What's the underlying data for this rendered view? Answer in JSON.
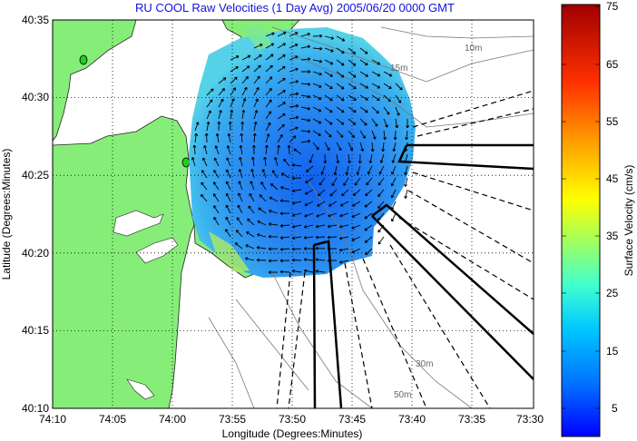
{
  "title": "RU COOL Raw Velocities (1 Day Avg) 2005/06/20 0000 GMT",
  "axes": {
    "xlabel": "Longitude (Degrees:Minutes)",
    "ylabel": "Latitude (Degrees:Minutes)",
    "xticks": [
      "74:10",
      "74:05",
      "74:00",
      "73:55",
      "73:50",
      "73:45",
      "73:40",
      "73:35",
      "73:30"
    ],
    "yticks": [
      "40:35",
      "40:30",
      "40:25",
      "40:20",
      "40:15",
      "40:10"
    ]
  },
  "colorbar": {
    "label": "Surface Velocity (cm/s)",
    "ticks": [
      "75",
      "65",
      "55",
      "45",
      "35",
      "25",
      "15",
      "5"
    ],
    "range": [
      0,
      75
    ],
    "colors": [
      "#0000ff",
      "#0070ff",
      "#00c8ff",
      "#40ffd0",
      "#a0ff60",
      "#ffff00",
      "#ffa000",
      "#ff3000",
      "#a00000"
    ]
  },
  "depth_labels": [
    "10m",
    "15m",
    "30m",
    "50m"
  ],
  "colors": {
    "land": "#86ee78",
    "water_field": "#3aa0ee",
    "title": "#1010e0",
    "grid": "#000000"
  }
}
